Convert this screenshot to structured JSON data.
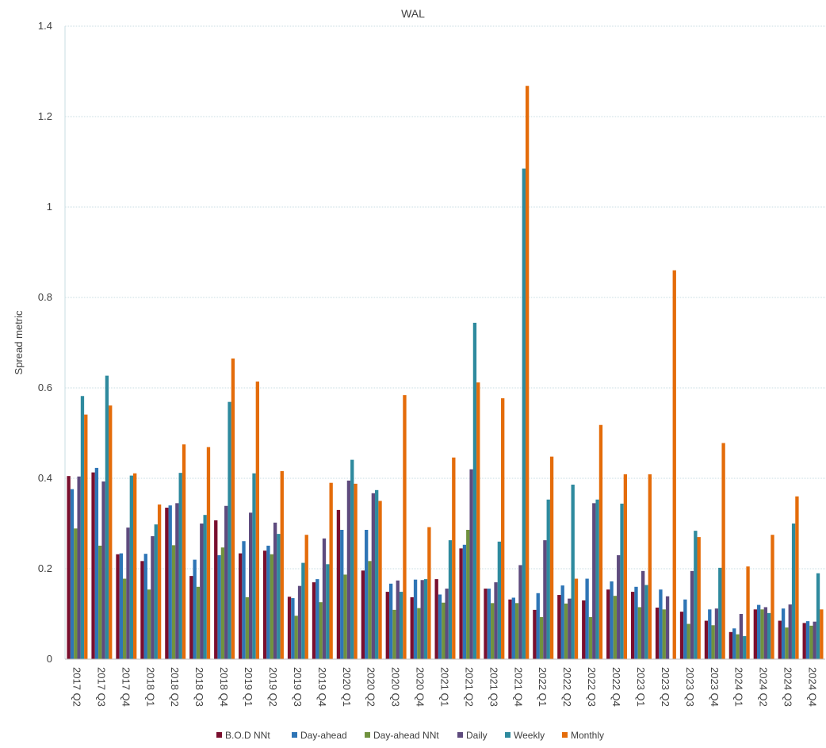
{
  "chart_data": {
    "type": "bar",
    "title": "WAL",
    "xlabel": "",
    "ylabel": "Spread metric",
    "ylim": [
      0,
      1.4
    ],
    "yticks": [
      "0",
      "0.2",
      "0.4",
      "0.6",
      "0.8",
      "1",
      "1.2",
      "1.4"
    ],
    "grid": true,
    "legend_position": "bottom",
    "categories": [
      "2017 Q2",
      "2017 Q3",
      "2017 Q4",
      "2018 Q1",
      "2018 Q2",
      "2018 Q3",
      "2018 Q4",
      "2019 Q1",
      "2019 Q2",
      "2019 Q3",
      "2019 Q4",
      "2020 Q1",
      "2020 Q2",
      "2020 Q3",
      "2020 Q4",
      "2021 Q1",
      "2021 Q2",
      "2021 Q3",
      "2021 Q4",
      "2022 Q1",
      "2022 Q2",
      "2022 Q3",
      "2022 Q4",
      "2023 Q1",
      "2023 Q2",
      "2023 Q3",
      "2023 Q4",
      "2024 Q1",
      "2024 Q2",
      "2024 Q3",
      "2024 Q4"
    ],
    "series": [
      {
        "name": "B.O.D NNt",
        "color": "#7a0f2e",
        "values": [
          0.405,
          0.413,
          0.232,
          0.217,
          0.335,
          0.184,
          0.307,
          0.234,
          0.24,
          0.138,
          0.17,
          0.33,
          0.196,
          0.149,
          0.137,
          0.177,
          0.245,
          0.156,
          0.132,
          0.109,
          0.142,
          0.13,
          0.154,
          0.149,
          0.114,
          0.105,
          0.085,
          0.06,
          0.11,
          0.085,
          0.08
        ]
      },
      {
        "name": "Day-ahead",
        "color": "#2e75b6",
        "values": [
          0.376,
          0.423,
          0.234,
          0.233,
          0.34,
          0.22,
          0.23,
          0.261,
          0.251,
          0.135,
          0.177,
          0.286,
          0.286,
          0.167,
          0.176,
          0.143,
          0.253,
          0.156,
          0.136,
          0.146,
          0.163,
          0.178,
          0.172,
          0.16,
          0.154,
          0.132,
          0.11,
          0.068,
          0.12,
          0.112,
          0.084
        ]
      },
      {
        "name": "Day-ahead NNt",
        "color": "#70923f",
        "values": [
          0.289,
          0.251,
          0.178,
          0.154,
          0.252,
          0.16,
          0.247,
          0.137,
          0.232,
          0.096,
          0.126,
          0.187,
          0.217,
          0.109,
          0.113,
          0.125,
          0.286,
          0.124,
          0.124,
          0.093,
          0.123,
          0.093,
          0.14,
          0.115,
          0.11,
          0.078,
          0.075,
          0.055,
          0.11,
          0.07,
          0.074
        ]
      },
      {
        "name": "Daily",
        "color": "#5e4b7e",
        "values": [
          0.404,
          0.393,
          0.291,
          0.272,
          0.345,
          0.3,
          0.339,
          0.324,
          0.302,
          0.162,
          0.267,
          0.395,
          0.367,
          0.174,
          0.175,
          0.156,
          0.42,
          0.17,
          0.208,
          0.263,
          0.134,
          0.345,
          0.23,
          0.195,
          0.139,
          0.195,
          0.112,
          0.1,
          0.115,
          0.121,
          0.083
        ]
      },
      {
        "name": "Weekly",
        "color": "#2e8a9e",
        "values": [
          0.582,
          0.627,
          0.406,
          0.298,
          0.412,
          0.319,
          0.569,
          0.411,
          0.277,
          0.213,
          0.21,
          0.441,
          0.374,
          0.149,
          0.177,
          0.263,
          0.744,
          0.26,
          1.085,
          0.353,
          0.386,
          0.353,
          0.344,
          0.164,
          0.0,
          0.284,
          0.202,
          0.051,
          0.102,
          0.3,
          0.19
        ]
      },
      {
        "name": "Monthly",
        "color": "#e46c0a",
        "values": [
          0.541,
          0.561,
          0.411,
          0.342,
          0.475,
          0.469,
          0.665,
          0.614,
          0.416,
          0.275,
          0.39,
          0.388,
          0.35,
          0.584,
          0.292,
          0.446,
          0.612,
          0.577,
          1.268,
          0.448,
          0.178,
          0.518,
          0.409,
          0.409,
          0.86,
          0.27,
          0.478,
          0.205,
          0.275,
          0.36,
          0.11
        ]
      }
    ]
  }
}
